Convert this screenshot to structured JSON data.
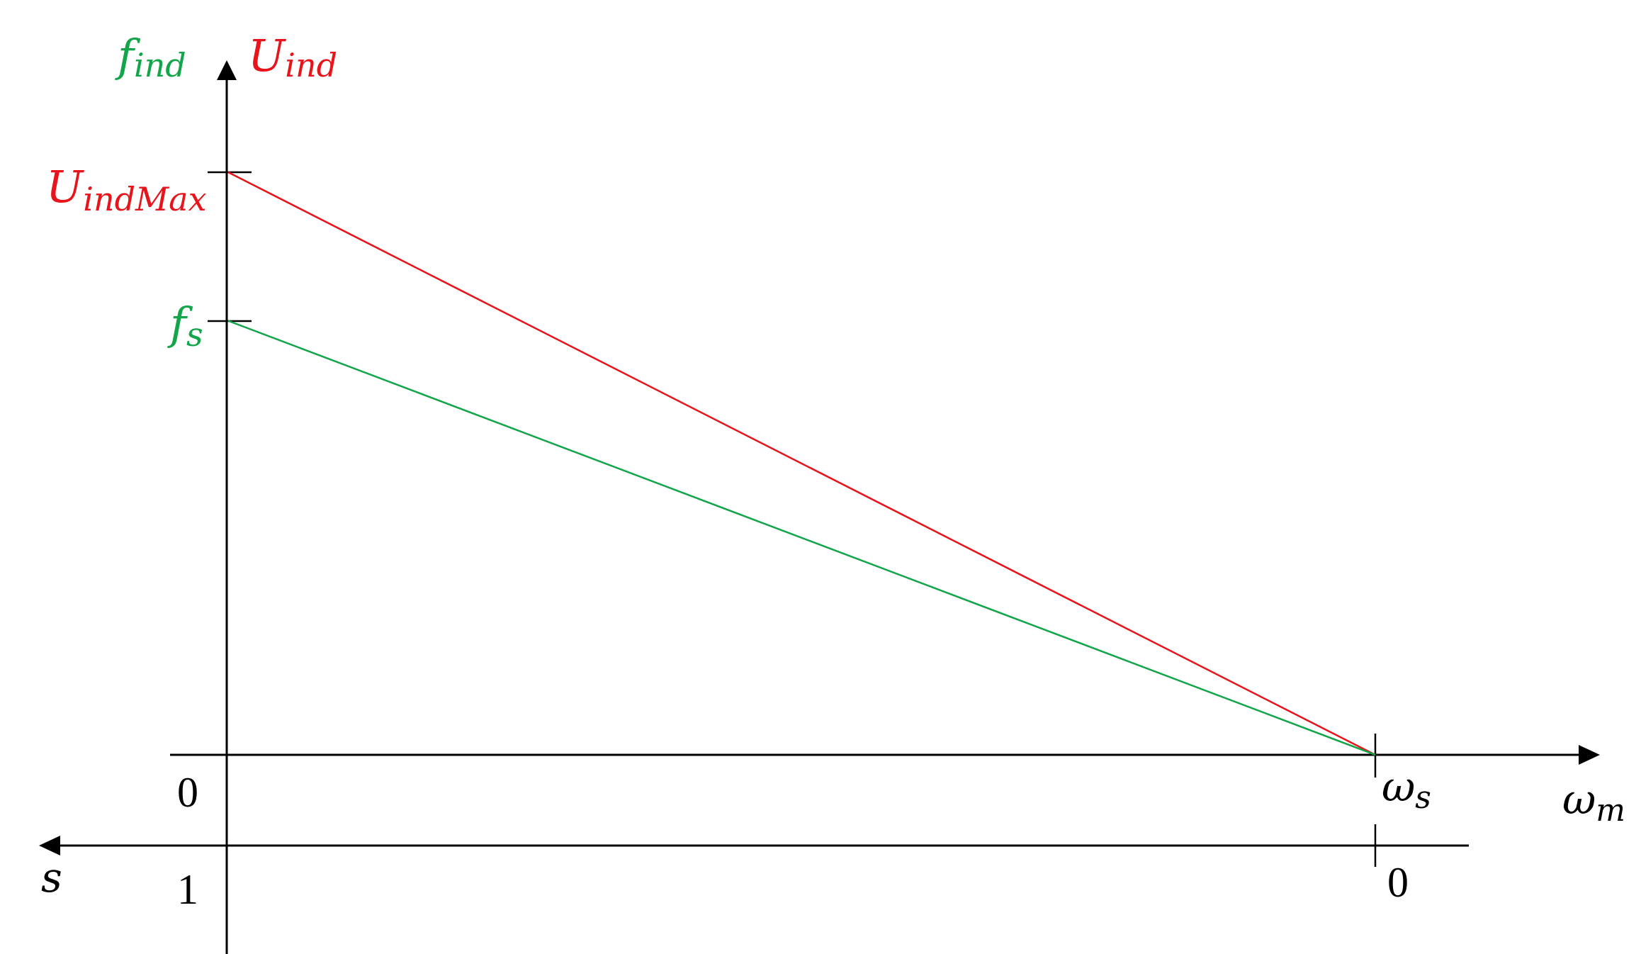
{
  "colors": {
    "red": "#e8141c",
    "green": "#12a54a",
    "black": "#000000"
  },
  "chart_data": {
    "type": "line",
    "y_label_green": "f",
    "y_label_green_sub": "ind",
    "y_label_red": "U",
    "y_label_red_sub": "ind",
    "x_label": "ω",
    "x_label_sub": "m",
    "s_label": "s",
    "origin_omega_label": "0",
    "origin_s_label": "1",
    "omega_s_label": "ω",
    "omega_s_label_sub": "s",
    "s_zero_label": "0",
    "y_tick_red": "U",
    "y_tick_red_sub": "indMax",
    "y_tick_green": "f",
    "y_tick_green_sub": "s",
    "series": [
      {
        "name": "U_ind",
        "color": "#e8141c",
        "x": [
          0,
          1
        ],
        "y": [
          1,
          0
        ]
      },
      {
        "name": "f_ind",
        "color": "#12a54a",
        "x": [
          0,
          1
        ],
        "y": [
          0.745,
          0
        ]
      }
    ]
  }
}
